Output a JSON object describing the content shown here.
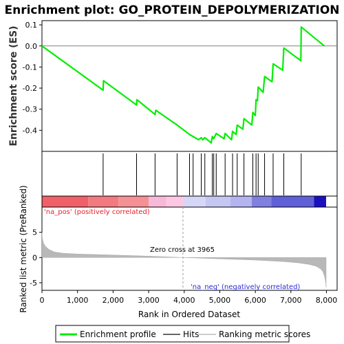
{
  "chart_data": {
    "type": "line",
    "title": "Enrichment plot: GO_PROTEIN_DEPOLYMERIZATION",
    "es_panel": {
      "ylabel": "Enrichment score (ES)",
      "ylim": [
        -0.5,
        0.12
      ],
      "yticks": [
        "0.1",
        "0.0",
        "-0.1",
        "-0.2",
        "-0.3",
        "-0.4"
      ],
      "ytick_values": [
        0.1,
        0.0,
        -0.1,
        -0.2,
        -0.3,
        -0.4
      ],
      "series_color": "#00ee00",
      "points": [
        [
          0,
          0.0
        ],
        [
          1720,
          -0.21
        ],
        [
          1730,
          -0.165
        ],
        [
          2660,
          -0.28
        ],
        [
          2670,
          -0.255
        ],
        [
          3180,
          -0.325
        ],
        [
          3200,
          -0.305
        ],
        [
          3800,
          -0.375
        ],
        [
          4150,
          -0.42
        ],
        [
          4250,
          -0.43
        ],
        [
          4400,
          -0.445
        ],
        [
          4480,
          -0.435
        ],
        [
          4520,
          -0.445
        ],
        [
          4580,
          -0.435
        ],
        [
          4760,
          -0.46
        ],
        [
          4790,
          -0.43
        ],
        [
          4830,
          -0.44
        ],
        [
          4900,
          -0.415
        ],
        [
          5120,
          -0.44
        ],
        [
          5150,
          -0.415
        ],
        [
          5330,
          -0.445
        ],
        [
          5360,
          -0.405
        ],
        [
          5460,
          -0.42
        ],
        [
          5490,
          -0.375
        ],
        [
          5650,
          -0.395
        ],
        [
          5680,
          -0.345
        ],
        [
          5900,
          -0.375
        ],
        [
          5930,
          -0.315
        ],
        [
          6000,
          -0.33
        ],
        [
          6020,
          -0.255
        ],
        [
          6060,
          -0.26
        ],
        [
          6080,
          -0.195
        ],
        [
          6220,
          -0.22
        ],
        [
          6260,
          -0.145
        ],
        [
          6470,
          -0.17
        ],
        [
          6500,
          -0.085
        ],
        [
          6770,
          -0.115
        ],
        [
          6800,
          -0.01
        ],
        [
          7280,
          -0.07
        ],
        [
          7290,
          0.09
        ],
        [
          7940,
          0.0
        ]
      ]
    },
    "hits": {
      "positions": [
        1720,
        2660,
        3180,
        3800,
        4150,
        4250,
        4480,
        4580,
        4790,
        4830,
        4900,
        5150,
        5360,
        5490,
        5680,
        5930,
        6020,
        6080,
        6260,
        6500,
        6800,
        7290
      ]
    },
    "color_band": {
      "label_pos": "'na_pos' (positively correlated)",
      "label_neg": "'na_neg' (negatively correlated)",
      "pos_color": "#e8202a",
      "neg_color": "#1515c8",
      "segments": [
        {
          "from": 0,
          "to": 1300,
          "color": "#f06068"
        },
        {
          "from": 1300,
          "to": 2150,
          "color": "#f27a80"
        },
        {
          "from": 2150,
          "to": 3000,
          "color": "#f59094"
        },
        {
          "from": 3000,
          "to": 3500,
          "color": "#f8b8d8"
        },
        {
          "from": 3500,
          "to": 3965,
          "color": "#fcc8e4"
        },
        {
          "from": 3965,
          "to": 4600,
          "color": "#d6d6f6"
        },
        {
          "from": 4600,
          "to": 5300,
          "color": "#c6c6f2"
        },
        {
          "from": 5300,
          "to": 5900,
          "color": "#b4b4ee"
        },
        {
          "from": 5900,
          "to": 6450,
          "color": "#8080e0"
        },
        {
          "from": 6450,
          "to": 7650,
          "color": "#6060d8"
        },
        {
          "from": 7650,
          "to": 7990,
          "color": "#1a10c0"
        }
      ]
    },
    "metric_panel": {
      "ylabel": "Ranked list metric (PreRanked)",
      "ylim": [
        -6.5,
        10
      ],
      "yticks": [
        "5",
        "0",
        "-5"
      ],
      "ytick_values": [
        5,
        0,
        -5
      ],
      "zero_cross_label": "Zero cross at 3965",
      "zero_cross": 3965,
      "fill_color": "#b8b8b8",
      "profile": [
        [
          0,
          5.0
        ],
        [
          10,
          3.8
        ],
        [
          40,
          2.9
        ],
        [
          100,
          2.2
        ],
        [
          200,
          1.6
        ],
        [
          350,
          1.1
        ],
        [
          600,
          0.85
        ],
        [
          1000,
          0.7
        ],
        [
          2000,
          0.5
        ],
        [
          3000,
          0.28
        ],
        [
          3965,
          0.0
        ],
        [
          5000,
          -0.25
        ],
        [
          6000,
          -0.5
        ],
        [
          6800,
          -0.8
        ],
        [
          7200,
          -1.05
        ],
        [
          7500,
          -1.35
        ],
        [
          7700,
          -1.7
        ],
        [
          7830,
          -2.2
        ],
        [
          7900,
          -2.8
        ],
        [
          7950,
          -3.8
        ],
        [
          7980,
          -5.0
        ],
        [
          7990,
          -5.9
        ]
      ]
    },
    "xaxis": {
      "label": "Rank in Ordered Dataset",
      "xlim": [
        0,
        8300
      ],
      "xticks": [
        "0",
        "1,000",
        "2,000",
        "3,000",
        "4,000",
        "5,000",
        "6,000",
        "7,000",
        "8,000"
      ],
      "xtick_values": [
        0,
        1000,
        2000,
        3000,
        4000,
        5000,
        6000,
        7000,
        8000
      ]
    },
    "legend": {
      "placement": "bottom",
      "items": [
        "Enrichment profile",
        "Hits",
        "Ranking metric scores"
      ]
    }
  }
}
